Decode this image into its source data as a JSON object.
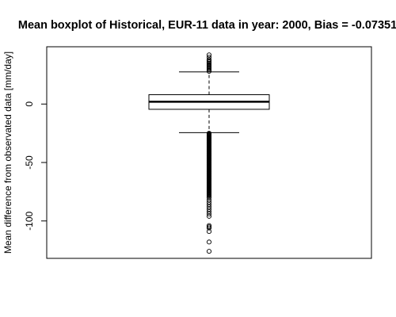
{
  "chart_data": {
    "type": "boxplot",
    "title": "Mean boxplot of Historical, EUR-11 data in year: 2000, Bias = -0.07351",
    "xlabel": "",
    "ylabel": "Mean difference from observated data [mm/day]",
    "ylim": [
      -132,
      49
    ],
    "yticks": [
      0,
      -50,
      -100
    ],
    "ytick_labels": [
      "0",
      "-50",
      "-100"
    ],
    "box": {
      "median": 2,
      "q1": -4.5,
      "q3": 8,
      "whisker_low": -24.5,
      "whisker_high": 27.5
    },
    "outliers_high": [
      28,
      29,
      30,
      31,
      32,
      33,
      34,
      35,
      36,
      37,
      38,
      40,
      42
    ],
    "outliers_low_range": [
      -25,
      -78
    ],
    "outliers_low": [
      -79,
      -80,
      -82,
      -84,
      -86,
      -88,
      -90,
      -92,
      -94,
      -96,
      -104,
      -105,
      -106,
      -109,
      -118,
      -126
    ]
  }
}
